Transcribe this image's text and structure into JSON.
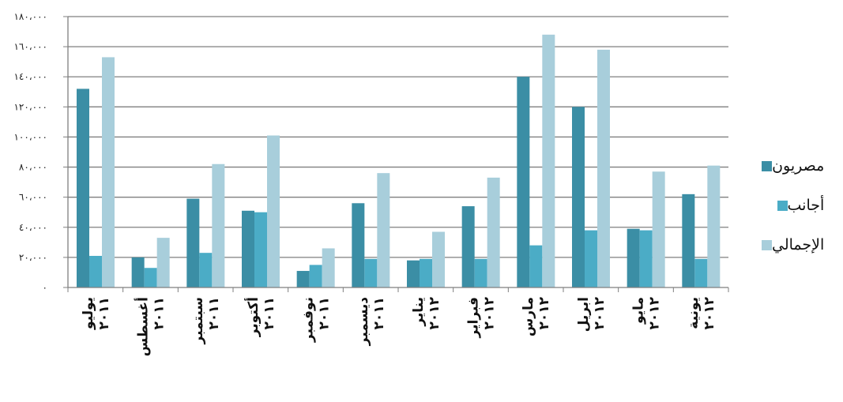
{
  "chart_data": {
    "type": "bar",
    "categories": [
      "يوليو ٢٠١١",
      "أغسطس ٢٠١١",
      "سبتمبر ٢٠١١",
      "أكتوبر ٢٠١١",
      "نوفمبر ٢٠١١",
      "ديسمبر ٢٠١١",
      "يناير ٢٠١٢",
      "فبراير ٢٠١٢",
      "مارس ٢٠١٢",
      "ابريل ٢٠١٢",
      "مايو ٢٠١٢",
      "يونية ٢٠١٢"
    ],
    "series": [
      {
        "name": "مصريون",
        "color": "#3b8ea5",
        "values": [
          132000,
          20000,
          59000,
          51000,
          11000,
          56000,
          18000,
          54000,
          140000,
          120000,
          39000,
          62000
        ]
      },
      {
        "name": "أجانب",
        "color": "#4bacc6",
        "values": [
          21000,
          13000,
          23000,
          50000,
          15000,
          19000,
          19000,
          19000,
          28000,
          38000,
          38000,
          19000
        ]
      },
      {
        "name": "الإجمالي",
        "color": "#a8cedb",
        "values": [
          153000,
          33000,
          82000,
          101000,
          26000,
          76000,
          37000,
          73000,
          168000,
          158000,
          77000,
          81000
        ]
      }
    ],
    "ylim": [
      0,
      180000
    ],
    "yticks": [
      "٠",
      "٢٠،٠٠٠",
      "٤٠،٠٠٠",
      "٦٠،٠٠٠",
      "٨٠،٠٠٠",
      "١٠٠،٠٠٠",
      "١٢٠،٠٠٠",
      "١٤٠،٠٠٠",
      "١٦٠،٠٠٠",
      "١٨٠،٠٠٠"
    ],
    "title": "",
    "xlabel": "",
    "ylabel": "",
    "grid": true,
    "legend_position": "right"
  }
}
